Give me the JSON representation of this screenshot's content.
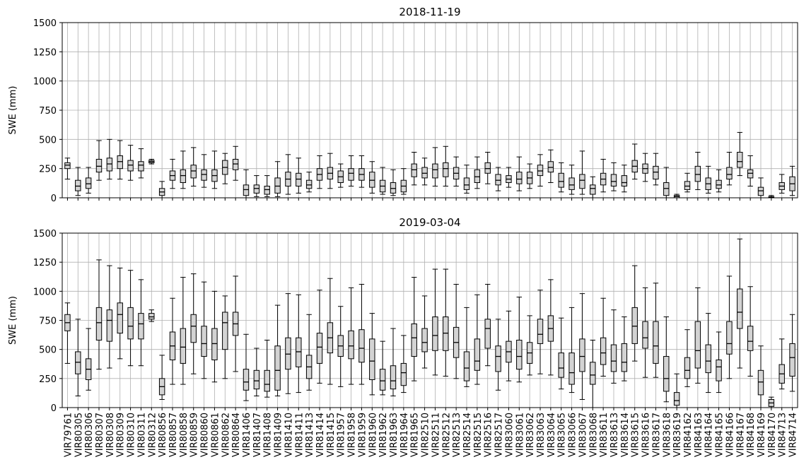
{
  "chart_data": [
    {
      "type": "box",
      "title": "2018-11-19",
      "ylabel": "SWE (mm)",
      "ylim": [
        0,
        1500
      ],
      "yticks": [
        0,
        250,
        500,
        750,
        1000,
        1250,
        1500
      ],
      "grid": true,
      "color": "#d3d3d3",
      "whisker_low": [
        160,
        20,
        40,
        150,
        160,
        160,
        150,
        170,
        290,
        0,
        80,
        80,
        100,
        90,
        80,
        120,
        150,
        0,
        10,
        10,
        10,
        30,
        40,
        50,
        80,
        80,
        90,
        100,
        90,
        40,
        30,
        20,
        30,
        110,
        110,
        100,
        100,
        100,
        40,
        80,
        120,
        60,
        90,
        60,
        80,
        100,
        130,
        50,
        30,
        30,
        0,
        50,
        60,
        50,
        160,
        140,
        110,
        0,
        0,
        50,
        70,
        40,
        50,
        110,
        190,
        100,
        0,
        0,
        40,
        20
      ],
      "q1": [
        250,
        60,
        80,
        220,
        230,
        250,
        230,
        230,
        300,
        20,
        150,
        130,
        170,
        150,
        140,
        200,
        240,
        20,
        40,
        30,
        40,
        100,
        100,
        80,
        150,
        160,
        130,
        150,
        150,
        90,
        50,
        40,
        50,
        180,
        170,
        170,
        180,
        160,
        70,
        130,
        210,
        110,
        130,
        120,
        120,
        190,
        220,
        90,
        70,
        80,
        30,
        110,
        100,
        100,
        220,
        210,
        160,
        20,
        0,
        70,
        140,
        70,
        80,
        160,
        260,
        170,
        20,
        0,
        70,
        60
      ],
      "median": [
        280,
        100,
        120,
        270,
        290,
        310,
        280,
        280,
        310,
        50,
        190,
        190,
        230,
        200,
        190,
        260,
        290,
        70,
        80,
        70,
        100,
        160,
        160,
        110,
        200,
        210,
        180,
        210,
        200,
        150,
        100,
        80,
        100,
        240,
        210,
        240,
        250,
        210,
        110,
        180,
        250,
        150,
        160,
        160,
        170,
        230,
        260,
        140,
        110,
        150,
        80,
        160,
        140,
        130,
        270,
        250,
        220,
        80,
        10,
        100,
        200,
        120,
        110,
        200,
        310,
        210,
        60,
        5,
        100,
        120
      ],
      "q3": [
        300,
        150,
        170,
        330,
        340,
        360,
        320,
        310,
        320,
        80,
        230,
        240,
        280,
        240,
        240,
        320,
        330,
        110,
        110,
        100,
        170,
        220,
        210,
        150,
        250,
        260,
        230,
        250,
        250,
        220,
        150,
        130,
        150,
        290,
        260,
        290,
        300,
        260,
        170,
        240,
        300,
        200,
        190,
        220,
        220,
        280,
        310,
        210,
        170,
        200,
        110,
        210,
        200,
        190,
        320,
        290,
        270,
        130,
        20,
        140,
        270,
        170,
        150,
        260,
        390,
        240,
        90,
        10,
        130,
        180
      ],
      "whisker_high": [
        340,
        260,
        260,
        490,
        500,
        490,
        450,
        420,
        330,
        140,
        330,
        400,
        430,
        370,
        400,
        380,
        440,
        240,
        190,
        190,
        310,
        370,
        340,
        220,
        360,
        380,
        290,
        360,
        360,
        310,
        260,
        240,
        250,
        390,
        340,
        430,
        440,
        350,
        280,
        350,
        390,
        260,
        260,
        350,
        290,
        370,
        410,
        300,
        280,
        400,
        180,
        330,
        300,
        280,
        460,
        380,
        380,
        260,
        30,
        210,
        390,
        270,
        240,
        390,
        560,
        360,
        170,
        20,
        200,
        270
      ]
    },
    {
      "type": "box",
      "title": "2019-03-04",
      "ylabel": "SWE (mm)",
      "ylim": [
        0,
        1500
      ],
      "yticks": [
        0,
        250,
        500,
        750,
        1000,
        1250,
        1500
      ],
      "grid": true,
      "color": "#d3d3d3",
      "categories": [
        "VIR79761",
        "VIR80305",
        "VIR80306",
        "VIR80307",
        "VIR80308",
        "VIR80309",
        "VIR80310",
        "VIR80311",
        "VIR80312",
        "VIR80856",
        "VIR80857",
        "VIR80858",
        "VIR80859",
        "VIR80860",
        "VIR80861",
        "VIR80862",
        "VIR80864",
        "VIR81406",
        "VIR81407",
        "VIR81408",
        "VIR81409",
        "VIR81410",
        "VIR81411",
        "VIR81413",
        "VIR81414",
        "VIR81415",
        "VIR81957",
        "VIR81958",
        "VIR81959",
        "VIR81960",
        "VIR81962",
        "VIR81963",
        "VIR81964",
        "VIR81965",
        "VIR82510",
        "VIR82511",
        "VIR82512",
        "VIR82513",
        "VIR82514",
        "VIR82515",
        "VIR82516",
        "VIR82517",
        "VIR83060",
        "VIR83061",
        "VIR83062",
        "VIR83063",
        "VIR83064",
        "VIR83065",
        "VIR83066",
        "VIR83067",
        "VIR83068",
        "VIR83611",
        "VIR83613",
        "VIR83614",
        "VIR83615",
        "VIR83616",
        "VIR83617",
        "VIR83618",
        "VIR83619",
        "VIR84162",
        "VIR84163",
        "VIR84164",
        "VIR84165",
        "VIR84166",
        "VIR84167",
        "VIR84168",
        "VIR84169",
        "VIR84170",
        "VIR84713",
        "VIR84714"
      ],
      "whisker_low": [
        380,
        100,
        150,
        330,
        340,
        420,
        360,
        360,
        740,
        70,
        200,
        200,
        290,
        250,
        220,
        250,
        310,
        60,
        100,
        90,
        100,
        120,
        130,
        150,
        210,
        200,
        180,
        200,
        200,
        110,
        110,
        100,
        130,
        230,
        340,
        280,
        270,
        250,
        180,
        200,
        360,
        150,
        230,
        220,
        280,
        290,
        280,
        160,
        130,
        70,
        0,
        270,
        210,
        230,
        400,
        260,
        260,
        50,
        0,
        180,
        210,
        130,
        130,
        250,
        340,
        270,
        0,
        0,
        160,
        140
      ],
      "q1": [
        660,
        290,
        240,
        580,
        570,
        640,
        590,
        590,
        760,
        110,
        410,
        380,
        560,
        440,
        410,
        500,
        620,
        150,
        160,
        140,
        150,
        330,
        350,
        250,
        380,
        470,
        440,
        420,
        390,
        240,
        150,
        160,
        190,
        440,
        480,
        490,
        490,
        430,
        230,
        320,
        510,
        310,
        390,
        330,
        380,
        550,
        570,
        260,
        200,
        310,
        200,
        370,
        310,
        310,
        550,
        510,
        380,
        140,
        20,
        250,
        340,
        300,
        230,
        460,
        680,
        490,
        110,
        10,
        210,
        270
      ],
      "median": [
        730,
        390,
        330,
        730,
        750,
        800,
        700,
        720,
        780,
        180,
        530,
        520,
        700,
        550,
        550,
        730,
        720,
        220,
        230,
        200,
        320,
        460,
        480,
        350,
        520,
        600,
        530,
        530,
        510,
        400,
        230,
        230,
        300,
        600,
        560,
        620,
        640,
        560,
        340,
        400,
        680,
        440,
        480,
        440,
        470,
        630,
        680,
        340,
        300,
        440,
        280,
        470,
        400,
        390,
        700,
        600,
        530,
        250,
        60,
        320,
        490,
        400,
        350,
        550,
        820,
        570,
        220,
        40,
        290,
        430
      ],
      "q3": [
        800,
        480,
        420,
        860,
        840,
        900,
        860,
        810,
        810,
        250,
        650,
        680,
        800,
        700,
        680,
        820,
        820,
        330,
        320,
        320,
        530,
        600,
        600,
        450,
        640,
        730,
        620,
        660,
        670,
        590,
        330,
        360,
        380,
        720,
        680,
        780,
        780,
        690,
        480,
        590,
        760,
        530,
        570,
        580,
        560,
        760,
        790,
        470,
        470,
        590,
        390,
        600,
        540,
        550,
        860,
        740,
        740,
        440,
        130,
        430,
        740,
        540,
        410,
        740,
        1020,
        700,
        320,
        70,
        370,
        550
      ],
      "whisker_high": [
        900,
        760,
        680,
        1270,
        1220,
        1200,
        1180,
        1100,
        840,
        450,
        940,
        1120,
        1150,
        1080,
        1000,
        960,
        1130,
        630,
        510,
        580,
        880,
        980,
        970,
        800,
        1010,
        1110,
        870,
        1030,
        1060,
        810,
        570,
        680,
        620,
        1120,
        960,
        1190,
        1190,
        1060,
        860,
        970,
        1060,
        760,
        830,
        950,
        790,
        1010,
        1100,
        770,
        860,
        980,
        580,
        940,
        840,
        780,
        1220,
        1030,
        1070,
        780,
        290,
        670,
        1030,
        810,
        650,
        1130,
        1450,
        1040,
        530,
        90,
        590,
        800
      ]
    }
  ]
}
